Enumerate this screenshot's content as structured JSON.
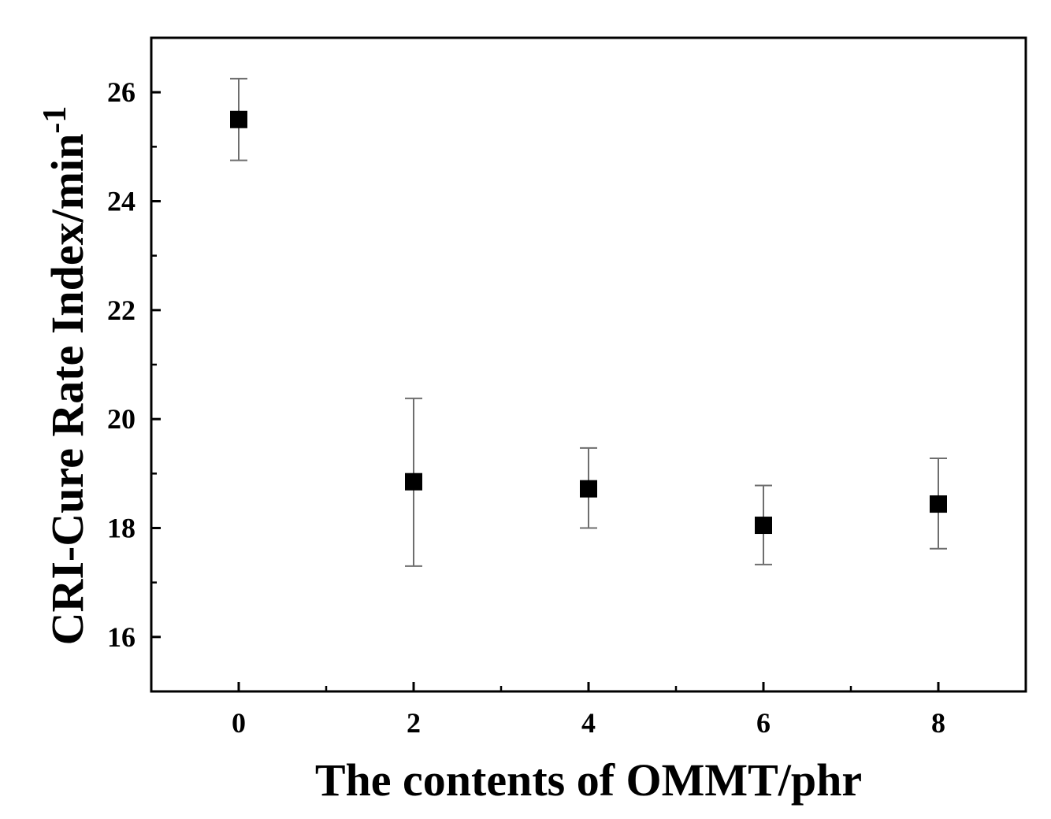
{
  "chart_data": {
    "type": "scatter",
    "title": "",
    "xlabel": "The contents of OMMT/phr",
    "ylabel": {
      "text": "CRI-Cure Rate Index/min",
      "superscript": "-1"
    },
    "xlim": [
      -1,
      9
    ],
    "ylim": [
      15,
      27
    ],
    "x_ticks": [
      0,
      2,
      4,
      6,
      8
    ],
    "x_tick_labels": [
      "0",
      "2",
      "4",
      "6",
      "8"
    ],
    "y_ticks": [
      16,
      18,
      20,
      22,
      24,
      26
    ],
    "y_tick_labels": [
      "16",
      "18",
      "20",
      "22",
      "24",
      "26"
    ],
    "grid": false,
    "legend": false,
    "series": [
      {
        "marker": "square",
        "color": "#000000",
        "points": [
          {
            "x": 0,
            "y": 25.5,
            "err_low": 24.75,
            "err_high": 26.25
          },
          {
            "x": 2,
            "y": 18.85,
            "err_low": 17.3,
            "err_high": 20.38
          },
          {
            "x": 4,
            "y": 18.72,
            "err_low": 18.0,
            "err_high": 19.47
          },
          {
            "x": 6,
            "y": 18.05,
            "err_low": 17.33,
            "err_high": 18.78
          },
          {
            "x": 8,
            "y": 18.44,
            "err_low": 17.62,
            "err_high": 19.28
          }
        ]
      }
    ]
  }
}
